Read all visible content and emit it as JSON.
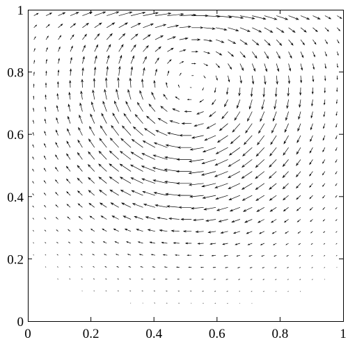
{
  "chart_data": {
    "type": "vector_field",
    "title": "",
    "xlabel": "",
    "ylabel": "",
    "xlim": [
      0,
      1
    ],
    "ylim": [
      0,
      1
    ],
    "x_ticks": [
      {
        "value": 0,
        "label": "0"
      },
      {
        "value": 0.2,
        "label": "0.2"
      },
      {
        "value": 0.4,
        "label": "0.4"
      },
      {
        "value": 0.6,
        "label": "0.6"
      },
      {
        "value": 0.8,
        "label": "0.8"
      },
      {
        "value": 1,
        "label": "1"
      }
    ],
    "y_ticks": [
      {
        "value": 0,
        "label": "0"
      },
      {
        "value": 0.2,
        "label": "0.2"
      },
      {
        "value": 0.4,
        "label": "0.4"
      },
      {
        "value": 0.6,
        "label": "0.6"
      },
      {
        "value": 0.8,
        "label": "0.8"
      },
      {
        "value": 1,
        "label": "1"
      }
    ],
    "grid": false,
    "legend": "none",
    "vortex_center": [
      0.52,
      0.77
    ],
    "rotation": "clockwise",
    "lid_velocity_direction": "+x",
    "sample_count": [
      26,
      26
    ],
    "colors": {
      "arrow": "#000000",
      "frame": "#000000",
      "background": "#ffffff"
    }
  }
}
